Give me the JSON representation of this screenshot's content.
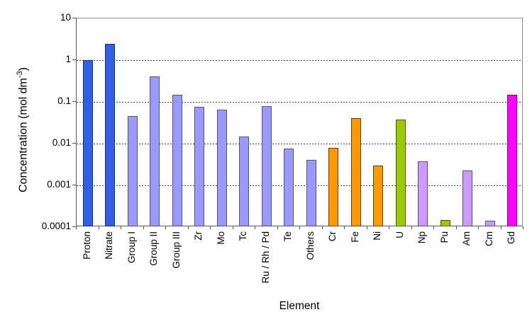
{
  "chart_data": {
    "type": "bar",
    "title": "",
    "xlabel": "Element",
    "ylabel": {
      "text": "Concentration (mol dm",
      "sup": "-3",
      "suffix": ")"
    },
    "yscale": "log",
    "ylim": [
      0.0001,
      10
    ],
    "yticks": [
      {
        "label": "10",
        "value": 10
      },
      {
        "label": "1",
        "value": 1
      },
      {
        "label": "0.1",
        "value": 0.1
      },
      {
        "label": "0.01",
        "value": 0.01
      },
      {
        "label": "0.001",
        "value": 0.001
      },
      {
        "label": "0.0001",
        "value": 0.0001
      }
    ],
    "grid": {
      "style": "dashed",
      "color": "#3d3d3d",
      "lines": [
        1,
        0.1,
        0.01,
        0.001
      ]
    },
    "legend": "none",
    "categories": [
      "Proton",
      "Nitrate",
      "Group I",
      "Group II",
      "Group III",
      "Zr",
      "Mo",
      "Tc",
      "Ru / Rh / Pd",
      "Te",
      "Others",
      "Cr",
      "Fe",
      "Ni",
      "U",
      "Np",
      "Pu",
      "Am",
      "Cm",
      "Gd"
    ],
    "values": [
      1.0,
      2.5,
      0.045,
      0.4,
      0.15,
      0.075,
      0.065,
      0.015,
      0.078,
      0.0075,
      0.004,
      0.008,
      0.04,
      0.003,
      0.038,
      0.0037,
      0.00015,
      0.0023,
      0.00014,
      0.15
    ],
    "bar_fill": [
      "#3060E8",
      "#3060E8",
      "#9999FF",
      "#9999FF",
      "#9999FF",
      "#9999FF",
      "#9999FF",
      "#9999FF",
      "#9999FF",
      "#9999FF",
      "#9999FF",
      "#FF9900",
      "#FF9900",
      "#FF9900",
      "#99CC00",
      "#CC99FF",
      "#99CC00",
      "#CC99FF",
      "#CC99FF",
      "#FF00FF"
    ],
    "bar_stroke": [
      "#1E2E78",
      "#1E2E78",
      "#53537F",
      "#53537F",
      "#53537F",
      "#53537F",
      "#53537F",
      "#53537F",
      "#53537F",
      "#53537F",
      "#53537F",
      "#5C4400",
      "#5C4400",
      "#5C4400",
      "#4A5E00",
      "#5C4E75",
      "#4A5E00",
      "#5C4E75",
      "#5C4E75",
      "#8A008A"
    ],
    "colors": {
      "blue": "#3060E8",
      "periwinkle": "#9999FF",
      "orange": "#FF9900",
      "green": "#99CC00",
      "lavender": "#CC99FF",
      "magenta": "#FF00FF",
      "axis": "#595959",
      "plot_border": "#8c8c8c",
      "background": "#FFFFFF"
    }
  }
}
